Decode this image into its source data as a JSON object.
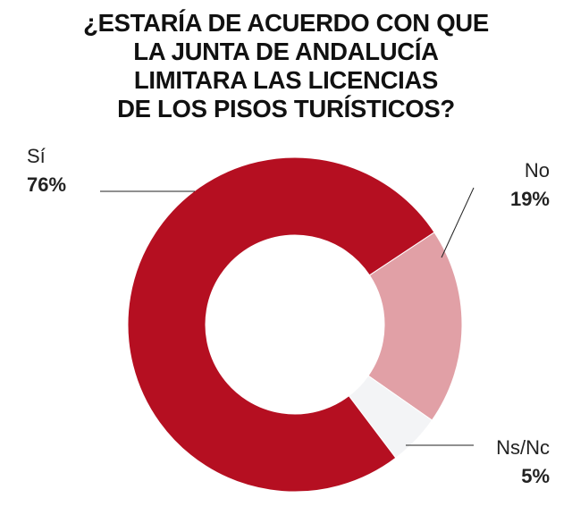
{
  "title_lines": [
    "¿ESTARÍA DE ACUERDO CON QUE",
    "LA JUNTA DE ANDALUCÍA",
    "LIMITARA LAS LICENCIAS",
    "DE LOS PISOS TURÍSTICOS?"
  ],
  "chart_data": {
    "type": "pie",
    "donut": true,
    "title": "¿ESTARÍA DE ACUERDO CON QUE LA JUNTA DE ANDALUCÍA LIMITARA LAS LICENCIAS DE LOS PISOS TURÍSTICOS?",
    "slices": [
      {
        "label": "Sí",
        "value": 76,
        "display": "76%",
        "color": "#b50f21"
      },
      {
        "label": "No",
        "value": 19,
        "display": "19%",
        "color": "#e1a0a6"
      },
      {
        "label": "Ns/Nc",
        "value": 5,
        "display": "5%",
        "color": "#f3f4f6"
      }
    ]
  }
}
